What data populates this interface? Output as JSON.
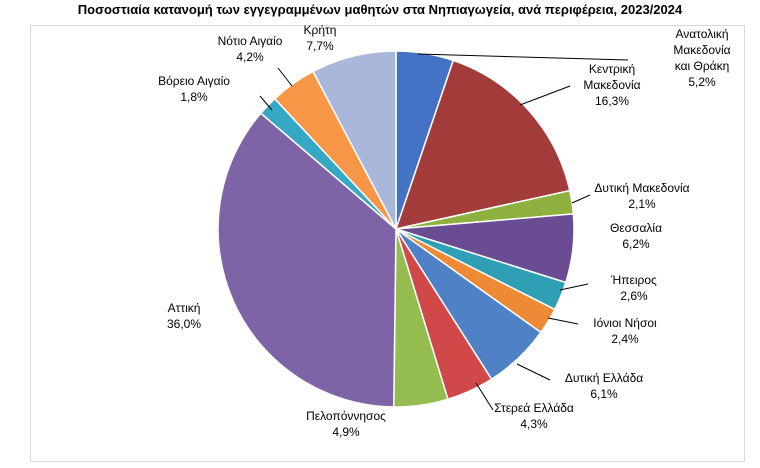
{
  "chart_data": {
    "type": "pie",
    "title": "Ποσοστιαία κατανομή των εγγεγραμμένων μαθητών στα Νηπιαγωγεία, ανά περιφέρεια, 2023/2024",
    "slices": [
      {
        "label": "Ανατολική Μακεδονία και Θράκη",
        "value": 5.2,
        "value_label": "5,2%",
        "color": "#4472C4"
      },
      {
        "label": "Κεντρική Μακεδονία",
        "value": 16.3,
        "value_label": "16,3%",
        "color": "#A33B3B"
      },
      {
        "label": "Δυτική Μακεδονία",
        "value": 2.1,
        "value_label": "2,1%",
        "color": "#8DB03E"
      },
      {
        "label": "Θεσσαλία",
        "value": 6.2,
        "value_label": "6,2%",
        "color": "#6A4C93"
      },
      {
        "label": "Ήπειρος",
        "value": 2.6,
        "value_label": "2,6%",
        "color": "#2E9FB5"
      },
      {
        "label": "Ιόνιοι Νήσοι",
        "value": 2.4,
        "value_label": "2,4%",
        "color": "#EE8A35"
      },
      {
        "label": "Δυτική Ελλάδα",
        "value": 6.1,
        "value_label": "6,1%",
        "color": "#4F81C7"
      },
      {
        "label": "Στερεά Ελλάδα",
        "value": 4.3,
        "value_label": "4,3%",
        "color": "#D14848"
      },
      {
        "label": "Πελοπόννησος",
        "value": 4.9,
        "value_label": "4,9%",
        "color": "#94BC4F"
      },
      {
        "label": "Αττική",
        "value": 36.0,
        "value_label": "36,0%",
        "color": "#7E63A6"
      },
      {
        "label": "Βόρειο Αιγαίο",
        "value": 1.8,
        "value_label": "1,8%",
        "color": "#35A8C6"
      },
      {
        "label": "Νότιο Αιγαίο",
        "value": 4.2,
        "value_label": "4,2%",
        "color": "#F79646"
      },
      {
        "label": "Κρήτη",
        "value": 7.7,
        "value_label": "7,7%",
        "color": "#A9B8DA"
      }
    ]
  }
}
